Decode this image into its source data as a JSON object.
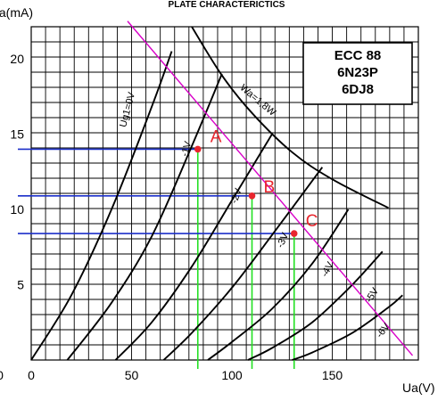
{
  "chart_data": {
    "type": "line",
    "title": "PLATE CHARACTERICTICS",
    "xlabel": "Ua(V)",
    "ylabel": "Ia(mA)",
    "xlim": [
      0,
      190
    ],
    "ylim": [
      0,
      22
    ],
    "xticks": [
      0,
      50,
      100,
      150
    ],
    "yticks": [
      5,
      10,
      15,
      20
    ],
    "tick_labels": {
      "x": [
        "0",
        "50",
        "100",
        "150"
      ],
      "y": [
        "5",
        "10",
        "15",
        "20"
      ],
      "origin": "0"
    },
    "grid": true,
    "legend_box": {
      "lines": [
        "ECC 88",
        "6N23P",
        "6DJ8"
      ],
      "position": "top-right"
    },
    "series": [
      {
        "name": "Ug1=0V",
        "x": [
          0,
          20,
          40,
          60,
          70
        ],
        "y": [
          0,
          4.3,
          10.0,
          16.8,
          20.5
        ]
      },
      {
        "name": "-1V",
        "x": [
          18,
          40,
          60,
          80,
          95
        ],
        "y": [
          0,
          3.8,
          8.2,
          14.2,
          19.0
        ]
      },
      {
        "name": "-2V",
        "x": [
          42,
          60,
          80,
          100,
          120
        ],
        "y": [
          0,
          2.5,
          6.2,
          10.6,
          15.0
        ]
      },
      {
        "name": "-3V",
        "x": [
          66,
          80,
          100,
          120,
          145
        ],
        "y": [
          0,
          1.8,
          4.8,
          8.3,
          12.8
        ]
      },
      {
        "name": "-4V",
        "x": [
          88,
          100,
          120,
          140,
          158
        ],
        "y": [
          0,
          1.2,
          3.4,
          6.4,
          10.0
        ]
      },
      {
        "name": "-5V",
        "x": [
          108,
          120,
          140,
          160,
          175
        ],
        "y": [
          0,
          0.8,
          2.5,
          5.0,
          7.2
        ]
      },
      {
        "name": "-6V",
        "x": [
          130,
          140,
          160,
          178,
          185
        ],
        "y": [
          0,
          0.5,
          1.8,
          3.5,
          4.3
        ]
      }
    ],
    "power_curve": {
      "name": "Wa=1,8W",
      "x": [
        80,
        95,
        110,
        130,
        150,
        178
      ],
      "y": [
        22.5,
        18.9,
        16.4,
        13.8,
        12.0,
        10.1
      ]
    },
    "load_line": {
      "x": [
        48,
        190
      ],
      "y": [
        22.5,
        0.3
      ],
      "color": "#d800c8"
    },
    "operating_points": [
      {
        "label": "A",
        "x": 83,
        "y": 14.0
      },
      {
        "label": "B",
        "x": 110,
        "y": 10.9
      },
      {
        "label": "C",
        "x": 131,
        "y": 8.4
      }
    ],
    "colors": {
      "curves": "#000000",
      "grid": "#000000",
      "load_line": "#d800c8",
      "horizontal_guides": "#1b2fc9",
      "vertical_guides": "#22e022",
      "points": "#e8262e"
    }
  }
}
